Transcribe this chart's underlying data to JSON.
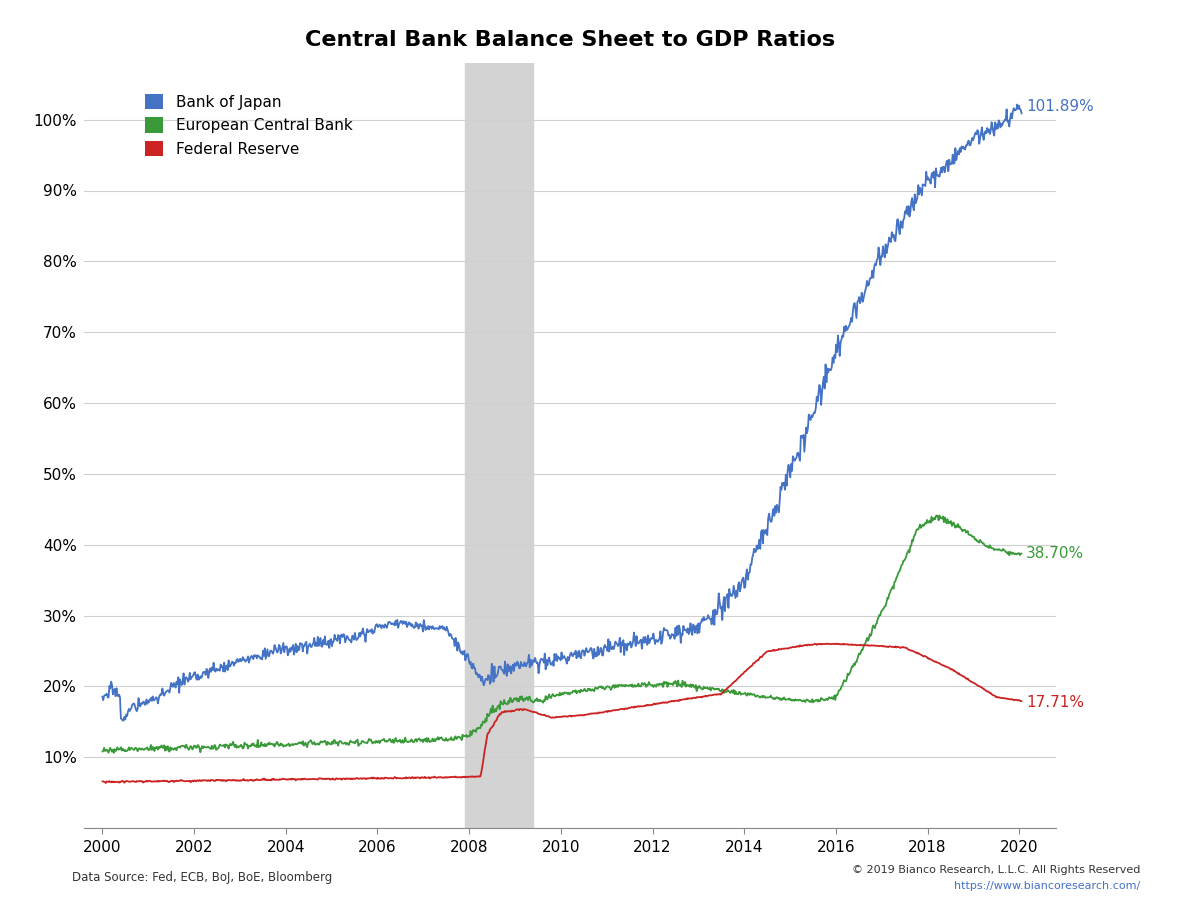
{
  "title": "Central Bank Balance Sheet to GDP Ratios",
  "title_fontsize": 16,
  "title_fontweight": "bold",
  "background_color": "#ffffff",
  "plot_bg_color": "#ffffff",
  "grid_color": "#d0d0d0",
  "legend_labels": [
    "Bank of Japan",
    "European Central Bank",
    "Federal Reserve"
  ],
  "boj_color": "#4472c4",
  "ecb_color": "#3a9a3a",
  "fed_color": "#cc2222",
  "shade_start": 2007.9,
  "shade_end": 2009.4,
  "shade_color": "#d3d3d3",
  "ylim": [
    0,
    108
  ],
  "xlim_start": 1999.6,
  "xlim_end": 2020.8,
  "yticks": [
    0,
    10,
    20,
    30,
    40,
    50,
    60,
    70,
    80,
    90,
    100
  ],
  "yticklabels": [
    "",
    "10%",
    "20%",
    "30%",
    "40%",
    "50%",
    "60%",
    "70%",
    "80%",
    "90%",
    "100%"
  ],
  "xticks": [
    2000,
    2002,
    2004,
    2006,
    2008,
    2010,
    2012,
    2014,
    2016,
    2018,
    2020
  ],
  "xticklabels": [
    "2000",
    "2002",
    "2004",
    "2006",
    "2008",
    "2010",
    "2012",
    "2014",
    "2016",
    "2018",
    "2020"
  ],
  "boj_end_label": "101.89%",
  "ecb_end_label": "38.70%",
  "fed_end_label": "17.71%",
  "datasource_text": "Data Source: Fed, ECB, BoJ, BoE, Bloomberg",
  "copyright_text": "© 2019 Bianco Research, L.L.C. All Rights Reserved",
  "url_text": "https://www.biancoresearch.com/",
  "line_width": 1.3,
  "label_fontsize": 11,
  "tick_fontsize": 11,
  "legend_fontsize": 11
}
